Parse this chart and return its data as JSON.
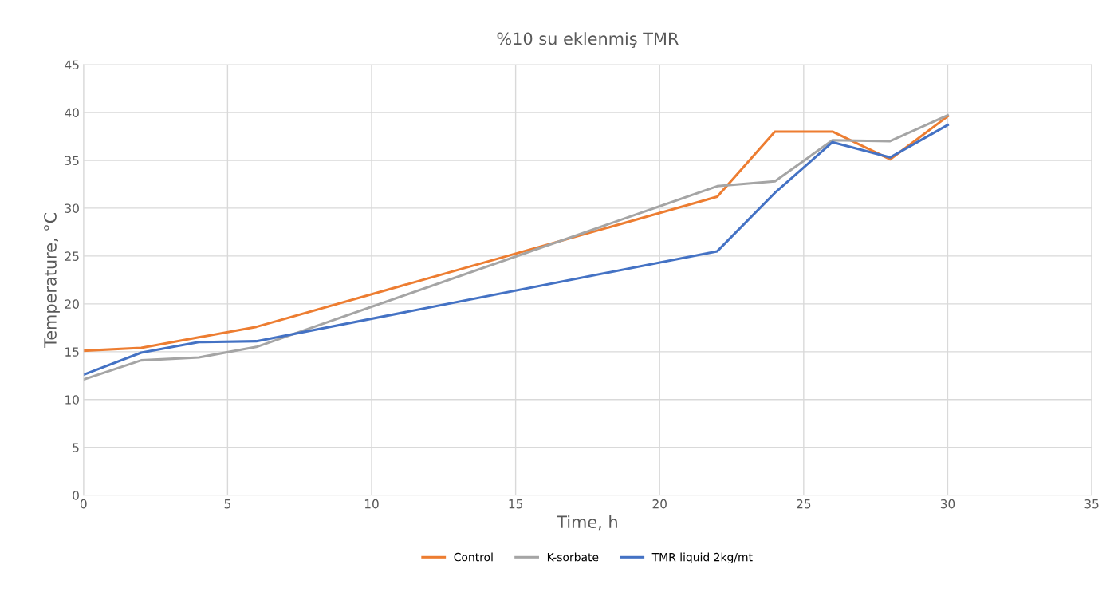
{
  "chart_data": {
    "type": "line",
    "title": "%10 su eklenmiş TMR",
    "xlabel": "Time, h",
    "ylabel": "Temperature, °C",
    "x": [
      0,
      2,
      4,
      6,
      22,
      24,
      26,
      28,
      30
    ],
    "series": [
      {
        "name": "Control",
        "color": "#ed7d31",
        "values": [
          15.1,
          15.4,
          16.5,
          17.6,
          31.2,
          38.0,
          38.0,
          35.1,
          39.6
        ]
      },
      {
        "name": "K-sorbate",
        "color": "#a5a5a5",
        "values": [
          12.1,
          14.1,
          14.4,
          15.5,
          32.3,
          32.8,
          37.1,
          37.0,
          39.7
        ]
      },
      {
        "name": "TMR liquid 2kg/mt",
        "color": "#4472c4",
        "values": [
          12.6,
          14.9,
          16.0,
          16.1,
          25.5,
          31.6,
          36.9,
          35.3,
          38.7
        ]
      }
    ],
    "xlim": [
      0,
      35
    ],
    "xticks": [
      0,
      5,
      10,
      15,
      20,
      25,
      30,
      35
    ],
    "ylim": [
      0,
      45
    ],
    "yticks": [
      0,
      5,
      10,
      15,
      20,
      25,
      30,
      35,
      40,
      45
    ],
    "grid": true,
    "legend": "bottom",
    "marker": "none",
    "line_style": "solid"
  }
}
